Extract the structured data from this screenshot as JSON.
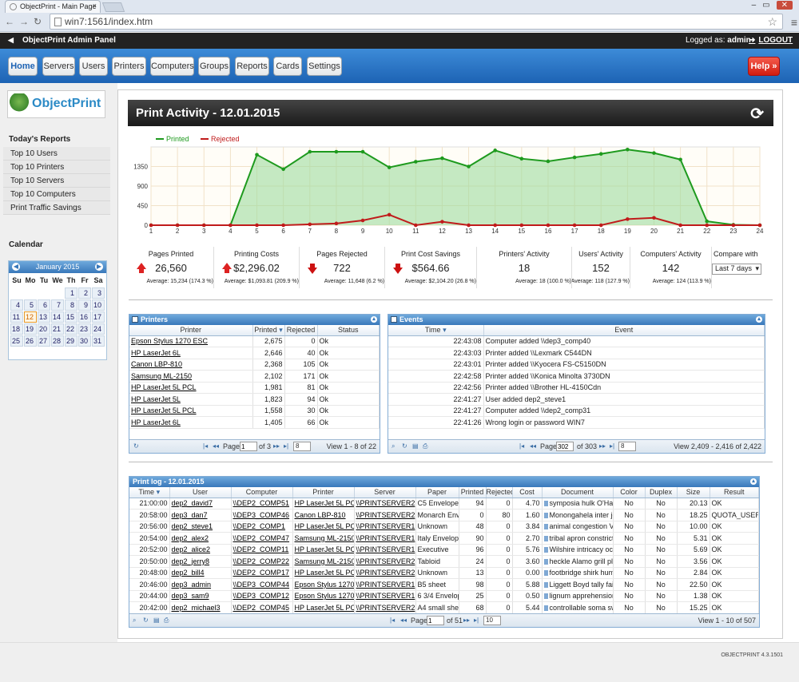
{
  "browser": {
    "tab_title": "ObjectPrint - Main Page",
    "url": "win7:1561/index.htm"
  },
  "topbar": {
    "title": "ObjectPrint Admin Panel",
    "logged_label": "Logged as:",
    "user": "admin",
    "logout": "LOGOUT"
  },
  "menu": {
    "items": [
      "Home",
      "Servers",
      "Users",
      "Printers",
      "Computers",
      "Groups",
      "Reports",
      "Cards",
      "Settings"
    ],
    "help": "Help »"
  },
  "sidebar": {
    "logo_text": "ObjectPrint",
    "reports_title": "Today's Reports",
    "reports": [
      "Top 10 Users",
      "Top 10 Printers",
      "Top 10 Servers",
      "Top 10 Computers",
      "Print Traffic Savings"
    ],
    "calendar_title": "Calendar",
    "calendar": {
      "month": "January 2015",
      "weekdays": [
        "Su",
        "Mo",
        "Tu",
        "We",
        "Th",
        "Fr",
        "Sa"
      ],
      "today": 12
    }
  },
  "activity": {
    "title": "Print Activity - 12.01.2015",
    "stats": [
      {
        "label": "Pages Printed",
        "value": "26,560",
        "avg": "Average: 15,234 (174.3 %)",
        "dir": "up"
      },
      {
        "label": "Printing Costs",
        "value": "$2,296.02",
        "avg": "Average: $1,093.81 (209.9 %)",
        "dir": "up"
      },
      {
        "label": "Pages Rejected",
        "value": "722",
        "avg": "Average: 11,648 (6.2 %)",
        "dir": "dn"
      },
      {
        "label": "Print Cost Savings",
        "value": "$564.66",
        "avg": "Average: $2,104.20 (26.8 %)",
        "dir": "dn"
      },
      {
        "label": "Printers' Activity",
        "value": "18",
        "avg": "Average: 18 (100.0 %)",
        "dir": ""
      },
      {
        "label": "Users' Activity",
        "value": "152",
        "avg": "Average: 118 (127.9 %)",
        "dir": ""
      },
      {
        "label": "Computers' Activity",
        "value": "142",
        "avg": "Average: 124 (113.9 %)",
        "dir": ""
      }
    ],
    "compare_label": "Compare with",
    "compare_value": "Last 7 days"
  },
  "chart_data": {
    "type": "line",
    "x": [
      1,
      2,
      3,
      4,
      5,
      6,
      7,
      8,
      9,
      10,
      11,
      12,
      13,
      14,
      15,
      16,
      17,
      18,
      19,
      20,
      21,
      22,
      23,
      24
    ],
    "series": [
      {
        "name": "Printed",
        "color": "#1e9a1e",
        "values": [
          0,
          0,
          0,
          0,
          1620,
          1290,
          1690,
          1690,
          1690,
          1330,
          1460,
          1540,
          1350,
          1720,
          1530,
          1470,
          1560,
          1640,
          1740,
          1660,
          1510,
          90,
          10,
          0
        ]
      },
      {
        "name": "Rejected",
        "color": "#c01b1b",
        "values": [
          0,
          0,
          0,
          0,
          0,
          0,
          20,
          40,
          110,
          240,
          0,
          80,
          0,
          0,
          0,
          0,
          0,
          0,
          140,
          170,
          0,
          0,
          0,
          0
        ]
      }
    ],
    "yticks": [
      0,
      450,
      900,
      1350
    ],
    "ylim": [
      0,
      1800
    ],
    "legend": "top-left",
    "grid": true
  },
  "printers": {
    "title": "Printers",
    "columns": [
      "Printer",
      "Printed",
      "Rejected",
      "Status"
    ],
    "rows": [
      [
        "Epson Stylus 1270 ESC",
        "2,675",
        "0",
        "Ok"
      ],
      [
        "HP LaserJet 6L",
        "2,646",
        "40",
        "Ok"
      ],
      [
        "Canon LBP-810",
        "2,368",
        "105",
        "Ok"
      ],
      [
        "Samsung ML-2150",
        "2,102",
        "171",
        "Ok"
      ],
      [
        "HP LaserJet 5L PCL",
        "1,981",
        "81",
        "Ok"
      ],
      [
        "HP LaserJet 5L",
        "1,823",
        "94",
        "Ok"
      ],
      [
        "HP LaserJet 5L PCL",
        "1,558",
        "30",
        "Ok"
      ],
      [
        "HP LaserJet 6L",
        "1,405",
        "66",
        "Ok"
      ]
    ],
    "pager": {
      "page_label": "Page",
      "page": "1",
      "of": "of 3",
      "size": "8",
      "view": "View 1 - 8 of 22"
    }
  },
  "events": {
    "title": "Events",
    "columns": [
      "Time",
      "Event"
    ],
    "rows": [
      [
        "22:43:08",
        "Computer added \\\\dep3_comp40"
      ],
      [
        "22:43:03",
        "Printer added \\\\Lexmark C544DN"
      ],
      [
        "22:43:01",
        "Printer added \\\\Kyocera FS-C5150DN"
      ],
      [
        "22:42:58",
        "Printer added \\\\Konica Minolta 3730DN"
      ],
      [
        "22:42:56",
        "Printer added \\\\Brother HL-4150Cdn"
      ],
      [
        "22:41:27",
        "User added dep2_steve1"
      ],
      [
        "22:41:27",
        "Computer added \\\\dep2_comp31"
      ],
      [
        "22:41:26",
        "Wrong login or password WIN7"
      ]
    ],
    "pager": {
      "page_label": "Page",
      "page": "302",
      "of": "of 303",
      "size": "8",
      "view": "View 2,409 - 2,416 of 2,422"
    }
  },
  "printlog": {
    "title": "Print log - 12.01.2015",
    "columns": [
      "Time",
      "User",
      "Computer",
      "Printer",
      "Server",
      "Paper",
      "Printed",
      "Rejected",
      "Cost",
      "Document",
      "Color",
      "Duplex",
      "Size",
      "Result"
    ],
    "rows": [
      [
        "21:00:00",
        "dep2_david7",
        "\\\\DEP2_COMP51",
        "HP LaserJet 5L PCL",
        "\\\\PRINTSERVER2",
        "C5 Envelope",
        "94",
        "0",
        "4.70",
        "symposia hulk O'Hare",
        "No",
        "No",
        "20.13",
        "OK"
      ],
      [
        "20:58:00",
        "dep3_dan7",
        "\\\\DEP3_COMP46",
        "Canon LBP-810",
        "\\\\PRINTSERVER2",
        "Monarch Envelope",
        "0",
        "80",
        "1.60",
        "Monongahela inter jo",
        "No",
        "No",
        "18.25",
        "QUOTA_USER"
      ],
      [
        "20:56:00",
        "dep2_steve1",
        "\\\\DEP2_COMP1",
        "HP LaserJet 5L PCL",
        "\\\\PRINTSERVER1",
        "Unknown",
        "48",
        "0",
        "3.84",
        "animal congestion Va",
        "No",
        "No",
        "10.00",
        "OK"
      ],
      [
        "20:54:00",
        "dep2_alex2",
        "\\\\DEP2_COMP47",
        "Samsung ML-2150",
        "\\\\PRINTSERVER1",
        "Italy Envelope",
        "90",
        "0",
        "2.70",
        "tribal apron constrict",
        "No",
        "No",
        "5.31",
        "OK"
      ],
      [
        "20:52:00",
        "dep2_alice2",
        "\\\\DEP2_COMP11",
        "HP LaserJet 5L PCL",
        "\\\\PRINTSERVER1",
        "Executive",
        "96",
        "0",
        "5.76",
        "Wilshire intricacy oct",
        "No",
        "No",
        "5.69",
        "OK"
      ],
      [
        "20:50:00",
        "dep2_jerry8",
        "\\\\DEP2_COMP22",
        "Samsung ML-2150",
        "\\\\PRINTSERVER2",
        "Tabloid",
        "24",
        "0",
        "3.60",
        "heckle Alamo grill pla",
        "No",
        "No",
        "3.56",
        "OK"
      ],
      [
        "20:48:00",
        "dep2_bill4",
        "\\\\DEP2_COMP17",
        "HP LaserJet 5L PCL",
        "\\\\PRINTSERVER2",
        "Unknown",
        "13",
        "0",
        "0.00",
        "footbridge shirk humi",
        "No",
        "No",
        "2.84",
        "OK"
      ],
      [
        "20:46:00",
        "dep3_admin",
        "\\\\DEP3_COMP44",
        "Epson Stylus 1270 E",
        "\\\\PRINTSERVER1",
        "B5 sheet",
        "98",
        "0",
        "5.88",
        "Liggett Boyd tally fail",
        "No",
        "No",
        "22.50",
        "OK"
      ],
      [
        "20:44:00",
        "dep3_sam9",
        "\\\\DEP3_COMP12",
        "Epson Stylus 1270 E",
        "\\\\PRINTSERVER1",
        "6 3/4 Envelope",
        "25",
        "0",
        "0.50",
        "lignum apprehension",
        "No",
        "No",
        "1.38",
        "OK"
      ],
      [
        "20:42:00",
        "dep2_michael3",
        "\\\\DEP2_COMP45",
        "HP LaserJet 5L PCL",
        "\\\\PRINTSERVER2",
        "A4 small sheet",
        "68",
        "0",
        "5.44",
        "controllable soma sw",
        "No",
        "No",
        "15.25",
        "OK"
      ]
    ],
    "pager": {
      "page_label": "Page",
      "page": "1",
      "of": "of 51",
      "size": "10",
      "view": "View 1 - 10 of 507"
    }
  },
  "footer": {
    "version": "OBJECTPRINT 4.3.1501"
  }
}
